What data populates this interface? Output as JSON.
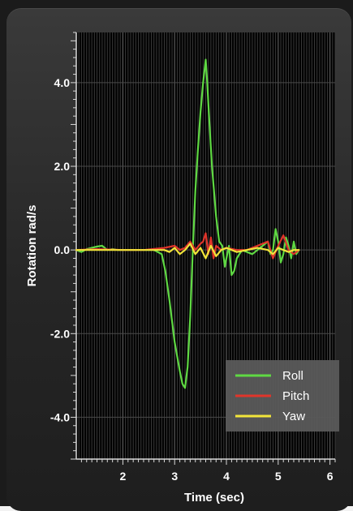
{
  "chart_data": {
    "type": "line",
    "xlabel": "Time (sec)",
    "ylabel": "Rotation rad/s",
    "xlim": [
      1.1,
      6.1
    ],
    "ylim": [
      -5.0,
      5.2
    ],
    "x_ticks": [
      "2",
      "3",
      "4",
      "5",
      "6"
    ],
    "y_ticks": [
      "4.0",
      "2.0",
      "0.0",
      "-2.0",
      "-4.0"
    ],
    "grid": true,
    "legend_position": "bottom-right",
    "series": [
      {
        "name": "Roll",
        "color": "#5fd943",
        "x": [
          1.1,
          1.2,
          1.3,
          1.5,
          1.6,
          1.7,
          1.8,
          1.9,
          2.0,
          2.2,
          2.4,
          2.6,
          2.75,
          2.82,
          2.9,
          3.0,
          3.1,
          3.15,
          3.2,
          3.25,
          3.3,
          3.35,
          3.4,
          3.45,
          3.5,
          3.55,
          3.6,
          3.63,
          3.66,
          3.72,
          3.8,
          3.86,
          3.92,
          3.97,
          4.0,
          4.05,
          4.1,
          4.15,
          4.2,
          4.3,
          4.5,
          4.7,
          4.8,
          4.85,
          4.9,
          4.95,
          5.0,
          5.05,
          5.1,
          5.15,
          5.2,
          5.25,
          5.3,
          5.35,
          5.4
        ],
        "values": [
          0.0,
          -0.05,
          0.02,
          0.08,
          0.1,
          0.0,
          0.02,
          0.0,
          0.0,
          0.0,
          0.0,
          0.0,
          -0.1,
          -0.5,
          -1.2,
          -2.2,
          -2.9,
          -3.2,
          -3.3,
          -2.8,
          -1.6,
          0.0,
          1.4,
          2.4,
          3.3,
          4.0,
          4.55,
          4.0,
          3.3,
          2.0,
          0.8,
          0.2,
          0.1,
          -0.4,
          -0.2,
          0.1,
          -0.6,
          -0.5,
          -0.2,
          0.0,
          -0.1,
          0.1,
          0.2,
          -0.1,
          0.0,
          0.5,
          0.2,
          -0.3,
          -0.1,
          0.3,
          0.1,
          -0.2,
          0.2,
          -0.1,
          0.0
        ]
      },
      {
        "name": "Pitch",
        "color": "#e0352b",
        "x": [
          1.1,
          1.5,
          2.0,
          2.4,
          2.8,
          3.0,
          3.1,
          3.2,
          3.3,
          3.4,
          3.5,
          3.55,
          3.6,
          3.65,
          3.7,
          3.75,
          3.8,
          3.9,
          4.0,
          4.2,
          4.4,
          4.6,
          4.8,
          4.9,
          5.0,
          5.1,
          5.2,
          5.3,
          5.4
        ],
        "values": [
          0.0,
          0.02,
          0.0,
          0.0,
          0.05,
          0.1,
          0.0,
          0.05,
          0.2,
          0.0,
          0.15,
          0.2,
          0.4,
          -0.1,
          0.3,
          -0.2,
          0.1,
          0.0,
          0.05,
          0.0,
          0.0,
          0.1,
          0.2,
          -0.2,
          0.1,
          0.35,
          0.0,
          -0.1,
          0.0
        ]
      },
      {
        "name": "Yaw",
        "color": "#f2e53a",
        "x": [
          1.1,
          1.5,
          2.0,
          2.5,
          2.8,
          2.9,
          3.0,
          3.1,
          3.2,
          3.3,
          3.4,
          3.5,
          3.6,
          3.7,
          3.8,
          3.9,
          4.0,
          4.2,
          4.4,
          4.6,
          4.8,
          4.9,
          5.0,
          5.1,
          5.2,
          5.3,
          5.4
        ],
        "values": [
          0.0,
          0.0,
          0.0,
          0.0,
          0.0,
          -0.05,
          0.05,
          -0.1,
          0.0,
          0.15,
          -0.1,
          0.05,
          -0.2,
          0.1,
          -0.15,
          0.0,
          0.05,
          -0.05,
          0.0,
          0.05,
          0.0,
          -0.1,
          0.05,
          0.0,
          -0.05,
          0.0,
          0.0
        ]
      }
    ]
  }
}
